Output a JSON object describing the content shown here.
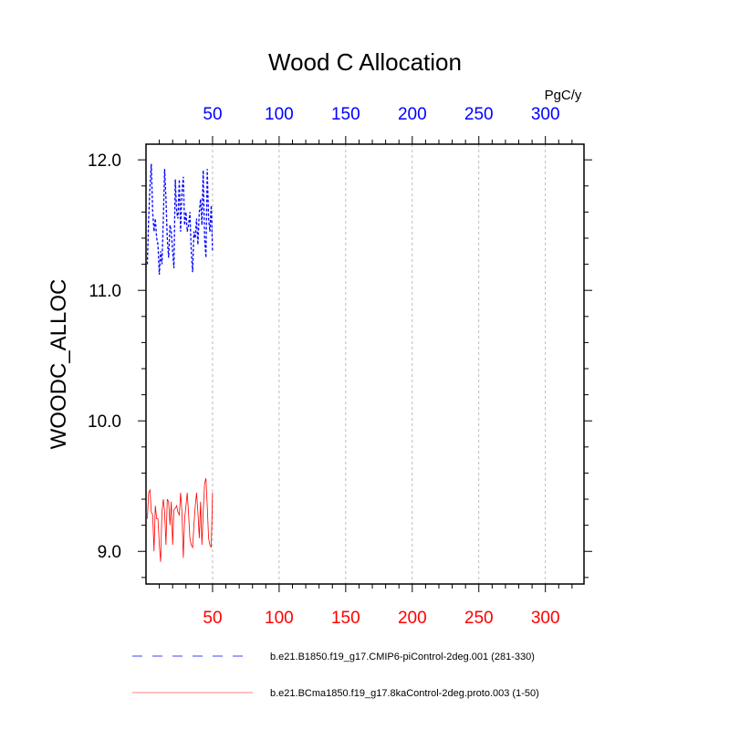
{
  "chart_data": {
    "type": "line",
    "title": "Wood C Allocation",
    "units": "PgC/y",
    "ylabel": "WOODC_ALLOC",
    "xlabel": "",
    "xlim": [
      0,
      329
    ],
    "ylim": [
      8.75,
      12.12
    ],
    "x_ticks": [
      50,
      100,
      150,
      200,
      250,
      300
    ],
    "x_tick_labels": [
      "50",
      "100",
      "150",
      "200",
      "250",
      "300"
    ],
    "y_ticks": [
      9.0,
      10.0,
      11.0,
      12.0
    ],
    "y_tick_labels": [
      "9.0",
      "10.0",
      "11.0",
      "12.0"
    ],
    "top_axis_color": "#0000ff",
    "bottom_axis_color": "#ff0000",
    "grid": "vertical dashed at major x ticks",
    "legend_position": "bottom",
    "x": [
      1,
      2,
      3,
      4,
      5,
      6,
      7,
      8,
      9,
      10,
      11,
      12,
      13,
      14,
      15,
      16,
      17,
      18,
      19,
      20,
      21,
      22,
      23,
      24,
      25,
      26,
      27,
      28,
      29,
      30,
      31,
      32,
      33,
      34,
      35,
      36,
      37,
      38,
      39,
      40,
      41,
      42,
      43,
      44,
      45,
      46,
      47,
      48,
      49,
      50
    ],
    "series": [
      {
        "name": "b.e21.B1850.f19_g17.CMIP6-piControl-2deg.001 (281-330)",
        "color": "#0000ff",
        "dash": "dashed",
        "values": [
          11.2,
          11.55,
          11.8,
          11.97,
          11.6,
          11.45,
          11.55,
          11.4,
          11.35,
          11.12,
          11.3,
          11.2,
          11.55,
          11.93,
          11.7,
          11.4,
          11.25,
          11.5,
          11.45,
          11.3,
          11.17,
          11.85,
          11.6,
          11.55,
          11.85,
          11.45,
          11.75,
          11.87,
          11.5,
          11.6,
          11.45,
          11.5,
          11.6,
          11.3,
          11.14,
          11.45,
          11.4,
          11.55,
          11.35,
          11.6,
          11.7,
          11.5,
          11.92,
          11.4,
          11.25,
          11.93,
          11.55,
          11.45,
          11.65,
          11.3
        ]
      },
      {
        "name": "b.e21.BCma1850.f19_g17.8kaControl-2deg.proto.003 (1-50)",
        "color": "#ff0000",
        "dash": "solid",
        "values": [
          9.25,
          9.45,
          9.47,
          9.3,
          9.28,
          9.0,
          9.35,
          9.25,
          9.25,
          9.05,
          8.92,
          9.3,
          9.4,
          9.3,
          9.05,
          9.4,
          9.38,
          9.2,
          9.38,
          9.05,
          9.32,
          9.33,
          9.35,
          9.3,
          9.28,
          9.45,
          9.3,
          8.95,
          9.25,
          9.35,
          9.45,
          9.28,
          9.1,
          9.05,
          9.03,
          9.2,
          9.35,
          9.45,
          9.3,
          9.1,
          9.38,
          9.05,
          9.3,
          9.52,
          9.56,
          9.35,
          9.1,
          9.05,
          9.03,
          9.45
        ]
      }
    ]
  }
}
